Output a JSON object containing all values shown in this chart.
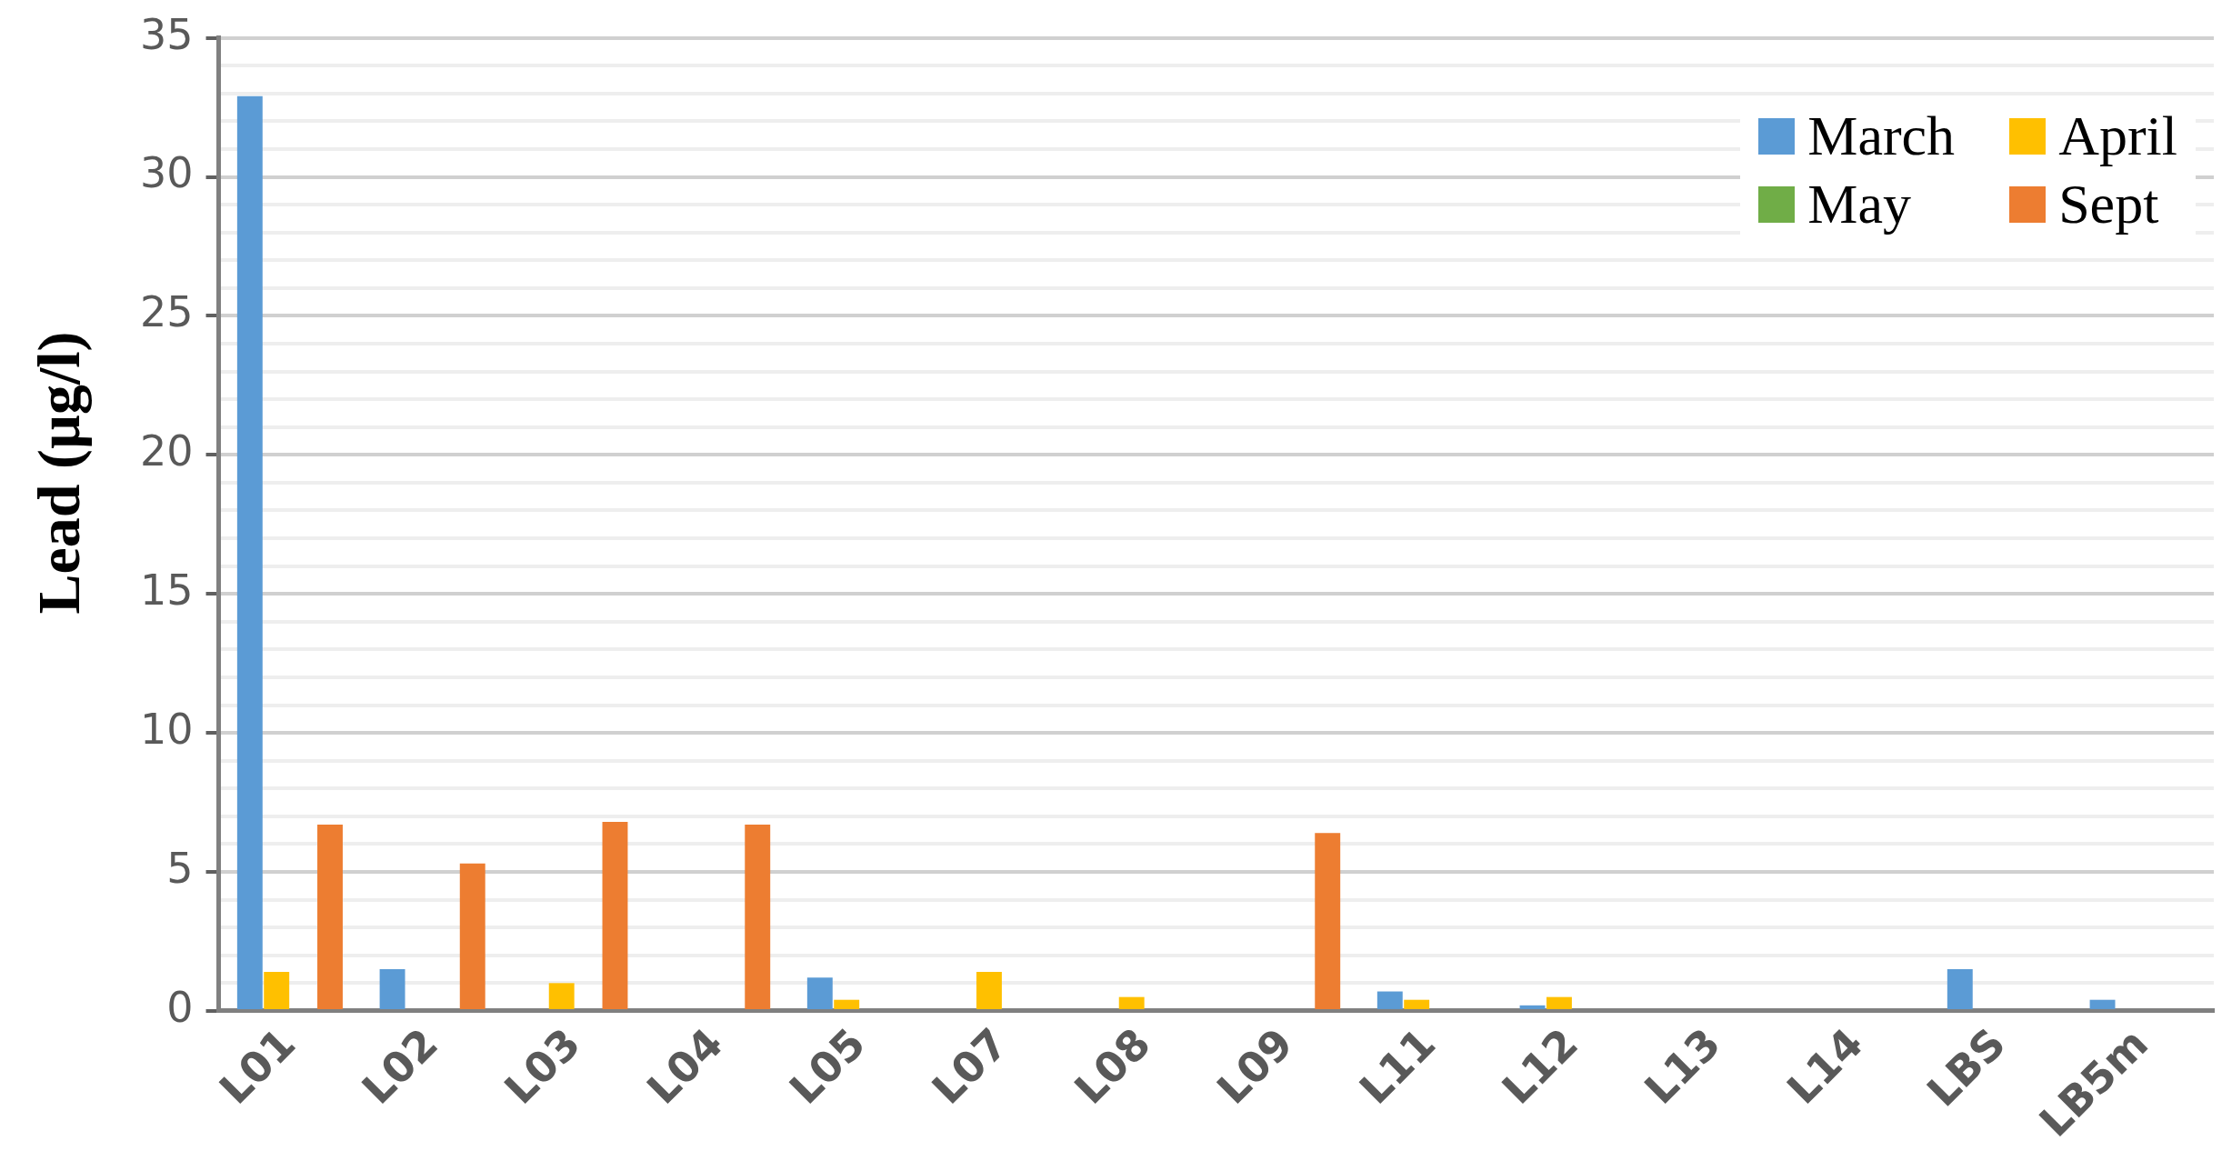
{
  "chart_data": {
    "type": "bar",
    "ylabel": "Lead (µg/l)",
    "categories": [
      "L01",
      "L02",
      "L03",
      "L04",
      "L05",
      "L07",
      "L08",
      "L09",
      "L11",
      "L12",
      "L13",
      "L14",
      "LBS",
      "LB5m"
    ],
    "series": [
      {
        "name": "March",
        "color": "#5b9bd5",
        "values": [
          32.9,
          1.5,
          null,
          null,
          1.2,
          null,
          null,
          null,
          0.7,
          0.2,
          null,
          null,
          1.5,
          0.4
        ]
      },
      {
        "name": "April",
        "color": "#ffc000",
        "values": [
          1.4,
          null,
          1.0,
          null,
          0.4,
          1.4,
          0.5,
          null,
          0.4,
          0.5,
          null,
          null,
          null,
          null
        ]
      },
      {
        "name": "May",
        "color": "#70ad47",
        "values": [
          null,
          null,
          null,
          null,
          null,
          null,
          null,
          null,
          null,
          null,
          null,
          null,
          null,
          null
        ]
      },
      {
        "name": "Sept",
        "color": "#ed7d31",
        "values": [
          6.7,
          5.3,
          6.8,
          6.7,
          null,
          null,
          null,
          6.4,
          null,
          null,
          null,
          null,
          null,
          null
        ]
      }
    ],
    "ylim": [
      0,
      35
    ],
    "yticks": [
      0,
      {
        "value": 1,
        "label": null
      },
      {
        "value": 2,
        "label": null
      },
      {
        "value": 3,
        "label": null
      },
      {
        "value": 4,
        "label": null
      },
      5,
      {
        "value": 6,
        "label": null
      },
      {
        "value": 7,
        "label": null
      },
      {
        "value": 8,
        "label": null
      },
      {
        "value": 9,
        "label": null
      },
      10,
      {
        "value": 11,
        "label": null
      },
      {
        "value": 12,
        "label": null
      },
      {
        "value": 13,
        "label": null
      },
      {
        "value": 14,
        "label": null
      },
      15,
      {
        "value": 16,
        "label": null
      },
      {
        "value": 17,
        "label": null
      },
      {
        "value": 18,
        "label": null
      },
      {
        "value": 19,
        "label": null
      },
      20,
      {
        "value": 21,
        "label": null
      },
      {
        "value": 22,
        "label": null
      },
      {
        "value": 23,
        "label": null
      },
      {
        "value": 24,
        "label": null
      },
      25,
      {
        "value": 26,
        "label": null
      },
      {
        "value": 27,
        "label": null
      },
      {
        "value": 28,
        "label": null
      },
      {
        "value": 29,
        "label": null
      },
      30,
      {
        "value": 31,
        "label": null
      },
      {
        "value": 32,
        "label": null
      },
      {
        "value": 33,
        "label": null
      },
      {
        "value": 34,
        "label": null
      },
      35
    ],
    "grid": "y",
    "legend": "top right"
  }
}
